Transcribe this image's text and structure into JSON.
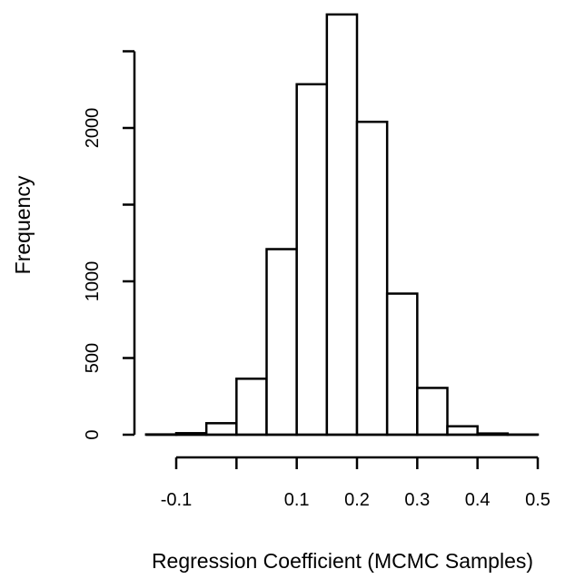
{
  "chart_data": {
    "type": "bar",
    "title": "",
    "xlabel": "Regression Coefficient (MCMC Samples)",
    "ylabel": "Frequency",
    "bin_edges": [
      -0.15,
      -0.1,
      -0.05,
      0.0,
      0.05,
      0.1,
      0.15,
      0.2,
      0.25,
      0.3,
      0.35,
      0.4,
      0.45,
      0.5
    ],
    "values": [
      2,
      10,
      75,
      365,
      1210,
      2285,
      2740,
      2040,
      920,
      305,
      55,
      8,
      1
    ],
    "xlim": [
      -0.15,
      0.5
    ],
    "ylim": [
      0,
      2740
    ],
    "x_ticks": [
      -0.1,
      0.0,
      0.1,
      0.2,
      0.3,
      0.4,
      0.5
    ],
    "x_tick_labels": [
      "-0.1",
      "",
      "0.1",
      "0.2",
      "0.3",
      "0.4",
      "0.5"
    ],
    "y_ticks": [
      0,
      500,
      1000,
      1500,
      2000,
      2500
    ],
    "y_tick_labels": [
      "0",
      "500",
      "1000",
      "",
      "2000",
      ""
    ],
    "grid": false,
    "legend": "none"
  }
}
